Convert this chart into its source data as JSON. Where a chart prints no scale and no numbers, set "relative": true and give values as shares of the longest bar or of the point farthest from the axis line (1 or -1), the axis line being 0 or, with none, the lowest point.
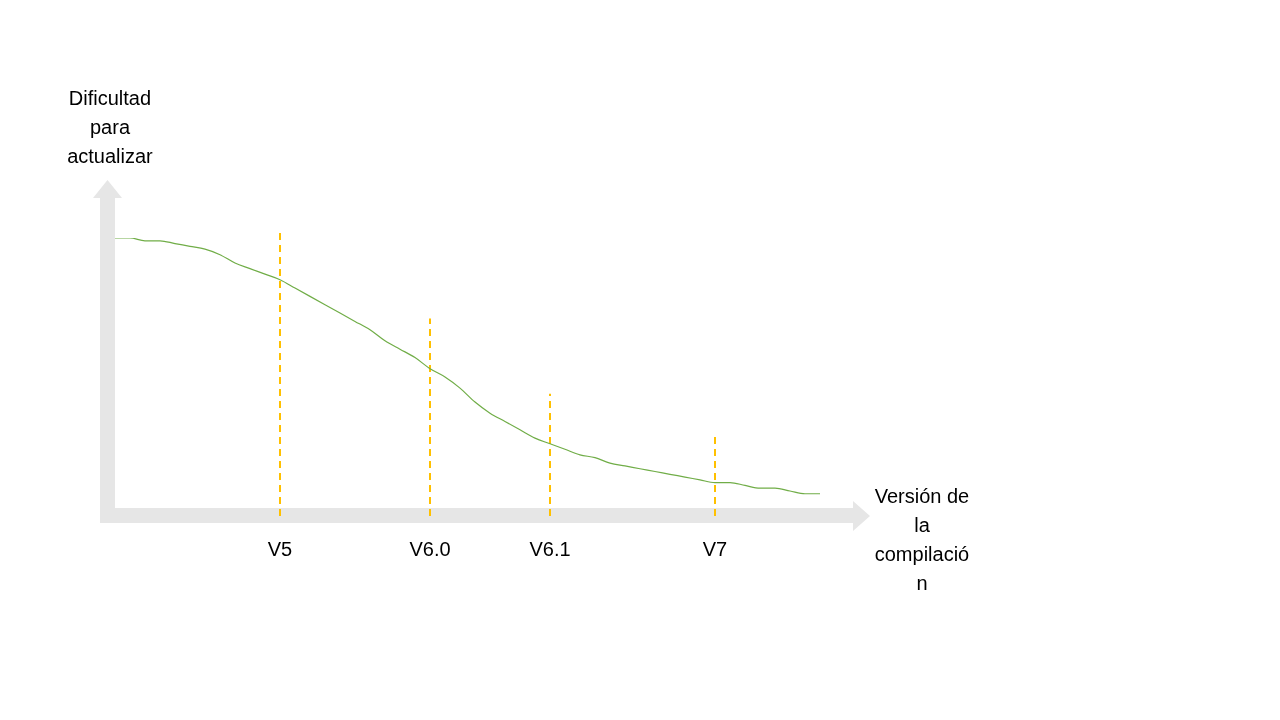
{
  "chart_data": {
    "type": "line",
    "relative": true,
    "xlabel": "Versión de la compilación",
    "ylabel": "Dificultad para actualizar",
    "categories": [
      null,
      null,
      null,
      null,
      null,
      null,
      null,
      null,
      null,
      null,
      null,
      "V5",
      null,
      null,
      null,
      null,
      null,
      null,
      null,
      null,
      null,
      "V6.0",
      null,
      null,
      null,
      null,
      null,
      null,
      null,
      "V6.1",
      null,
      null,
      null,
      null,
      null,
      null,
      null,
      null,
      null,
      null,
      "V7",
      null,
      null,
      null,
      null,
      null,
      null,
      null
    ],
    "series": [
      {
        "color": "#70ad47",
        "values": [
          1.0,
          1.0,
          0.99,
          0.99,
          0.98,
          0.97,
          0.96,
          0.94,
          0.91,
          0.89,
          0.87,
          0.85,
          0.82,
          0.79,
          0.76,
          0.73,
          0.7,
          0.67,
          0.63,
          0.6,
          0.57,
          0.53,
          0.5,
          0.46,
          0.41,
          0.37,
          0.34,
          0.31,
          0.28,
          0.26,
          0.24,
          0.22,
          0.21,
          0.19,
          0.18,
          0.17,
          0.16,
          0.15,
          0.14,
          0.13,
          0.12,
          0.12,
          0.11,
          0.1,
          0.1,
          0.09,
          0.08,
          0.08
        ]
      }
    ],
    "ref_lines": [
      {
        "axis": "x",
        "value": "V5",
        "color": "#ffc000",
        "line_style": "dashed"
      },
      {
        "axis": "x",
        "value": "V6.0",
        "color": "#ffc000",
        "line_style": "dashed"
      },
      {
        "axis": "x",
        "value": "V6.1",
        "color": "#ffc000",
        "line_style": "dashed"
      },
      {
        "axis": "x",
        "value": "V7",
        "color": "#ffc000",
        "line_style": "dashed"
      }
    ],
    "grid": false,
    "legend": false,
    "marker": "none",
    "line_style": "solid"
  }
}
